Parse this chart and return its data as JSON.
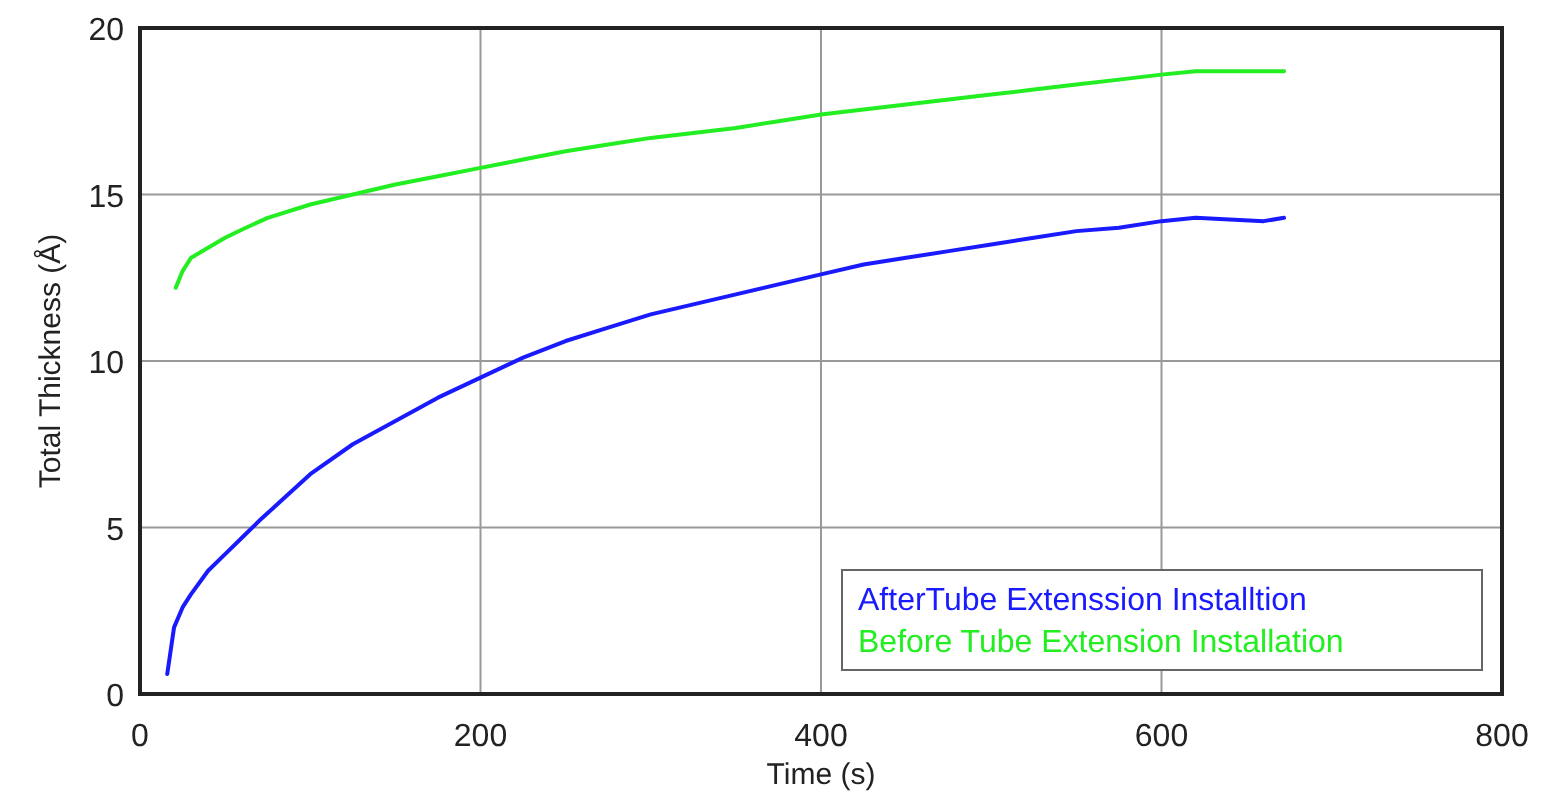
{
  "chart_data": {
    "type": "line",
    "xlabel": "Time (s)",
    "ylabel": "Total Thickness (Å)",
    "xlim": [
      0,
      800
    ],
    "xticks": [
      0,
      200,
      400,
      600,
      800
    ],
    "ylim": [
      0,
      20
    ],
    "yticks": [
      0,
      5,
      10,
      15,
      20
    ],
    "grid": true,
    "legend": "bottom right",
    "series": [
      {
        "name": "AfterTube Extenssion Installtion",
        "color": "#1a1aff",
        "x": [
          16,
          20,
          25,
          30,
          40,
          50,
          60,
          70,
          85,
          100,
          125,
          150,
          175,
          200,
          225,
          250,
          275,
          300,
          325,
          350,
          375,
          400,
          425,
          450,
          475,
          500,
          525,
          550,
          575,
          600,
          620,
          640,
          660,
          672
        ],
        "values": [
          0.6,
          2.0,
          2.6,
          3.0,
          3.7,
          4.2,
          4.7,
          5.2,
          5.9,
          6.6,
          7.5,
          8.2,
          8.9,
          9.5,
          10.1,
          10.6,
          11.0,
          11.4,
          11.7,
          12.0,
          12.3,
          12.6,
          12.9,
          13.1,
          13.3,
          13.5,
          13.7,
          13.9,
          14.0,
          14.2,
          14.3,
          14.25,
          14.2,
          14.3
        ]
      },
      {
        "name": "Before Tube Extension Installation",
        "color": "#22ee22",
        "x": [
          21,
          25,
          30,
          40,
          50,
          60,
          75,
          100,
          125,
          150,
          175,
          200,
          225,
          250,
          275,
          300,
          325,
          350,
          375,
          400,
          425,
          450,
          475,
          500,
          525,
          550,
          575,
          600,
          620,
          640,
          660,
          672
        ],
        "values": [
          12.2,
          12.7,
          13.1,
          13.4,
          13.7,
          13.95,
          14.3,
          14.7,
          15.0,
          15.3,
          15.55,
          15.8,
          16.05,
          16.3,
          16.5,
          16.7,
          16.85,
          17.0,
          17.2,
          17.4,
          17.55,
          17.7,
          17.85,
          18.0,
          18.15,
          18.3,
          18.45,
          18.6,
          18.7,
          18.7,
          18.7,
          18.7
        ]
      }
    ]
  }
}
